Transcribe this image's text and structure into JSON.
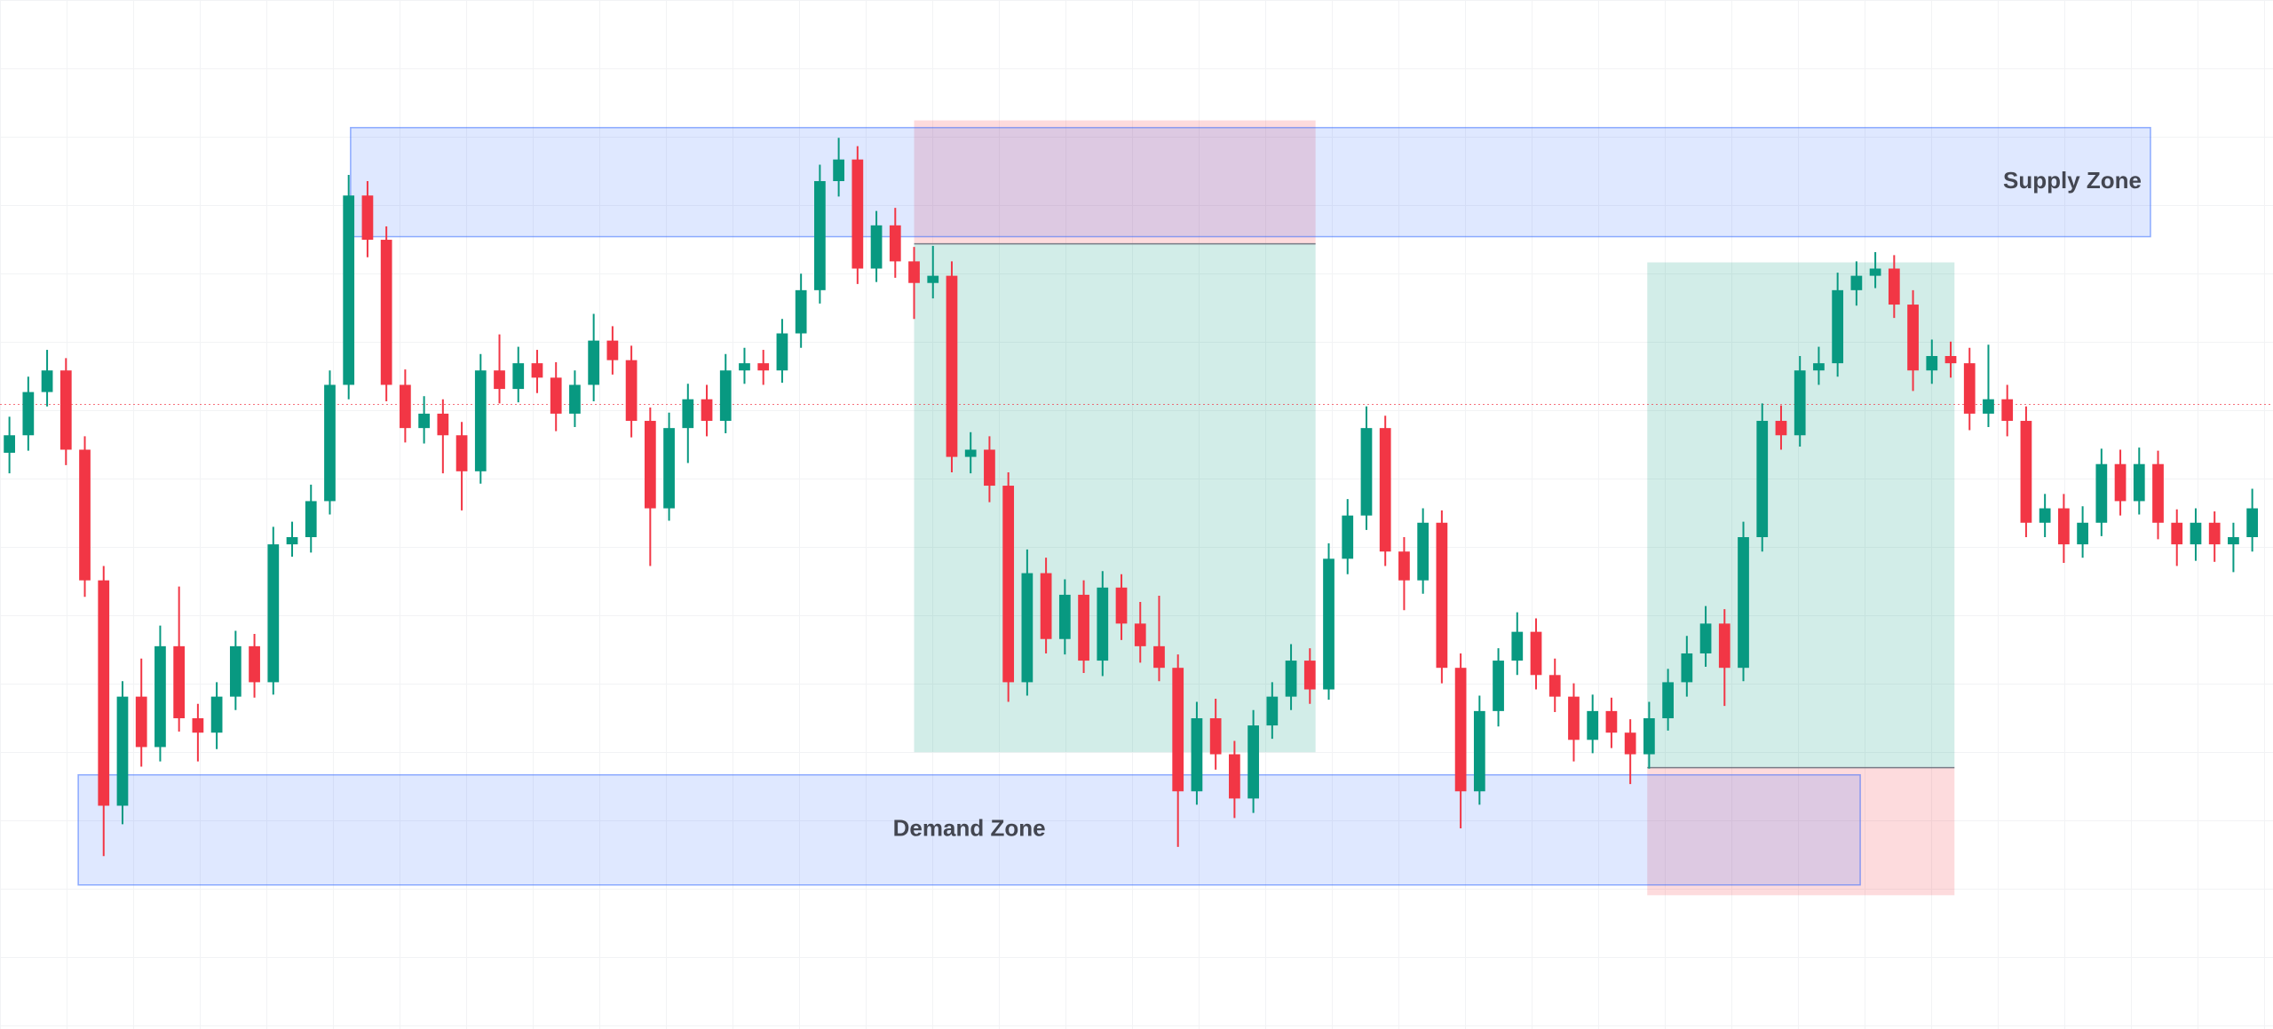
{
  "chart_data": {
    "type": "candlestick",
    "xlim": [
      -0.5,
      120.1
    ],
    "ylim": [
      0,
      100
    ],
    "up_color": "#089981",
    "down_color": "#f23645",
    "open": [
      56.0,
      57.7,
      61.9,
      64.0,
      56.3,
      43.6,
      21.7,
      32.3,
      27.4,
      37.2,
      30.2,
      28.8,
      32.3,
      37.2,
      33.7,
      47.1,
      47.8,
      51.3,
      62.6,
      81.0,
      76.7,
      62.6,
      58.4,
      59.8,
      57.7,
      54.2,
      64.0,
      62.2,
      64.7,
      63.3,
      59.8,
      62.6,
      66.9,
      65.0,
      59.1,
      50.6,
      58.4,
      61.2,
      59.1,
      64.0,
      64.7,
      64.0,
      67.6,
      71.8,
      82.4,
      84.5,
      73.9,
      78.1,
      74.6,
      72.5,
      73.2,
      55.6,
      56.3,
      52.8,
      33.7,
      44.3,
      37.9,
      42.2,
      35.8,
      42.9,
      39.4,
      37.2,
      35.1,
      23.1,
      30.2,
      26.7,
      22.4,
      29.5,
      32.3,
      35.8,
      33.0,
      45.7,
      49.9,
      58.4,
      46.4,
      43.6,
      49.2,
      35.1,
      23.1,
      30.9,
      35.8,
      38.6,
      34.4,
      32.3,
      28.1,
      30.9,
      28.8,
      26.7,
      30.2,
      33.7,
      36.5,
      39.4,
      35.1,
      47.8,
      59.1,
      57.7,
      64.0,
      64.7,
      71.8,
      73.2,
      73.9,
      70.4,
      64.0,
      65.4,
      64.7,
      59.8,
      61.2,
      59.1,
      49.2,
      50.6,
      47.1,
      49.2,
      54.9,
      51.3,
      54.9,
      49.2,
      47.1,
      49.2,
      47.1,
      47.8
    ],
    "high": [
      59.5,
      63.4,
      66.0,
      65.2,
      57.6,
      45.0,
      33.8,
      36.0,
      39.2,
      43.0,
      31.6,
      33.7,
      38.7,
      38.4,
      48.8,
      49.3,
      52.9,
      64.0,
      83.0,
      82.4,
      78.0,
      64.1,
      61.5,
      61.2,
      59.0,
      65.6,
      67.5,
      66.3,
      66.0,
      64.8,
      64.0,
      69.5,
      68.3,
      66.4,
      60.4,
      59.9,
      62.7,
      62.6,
      65.6,
      66.2,
      66.0,
      69.0,
      73.4,
      84.0,
      86.6,
      85.8,
      79.5,
      79.8,
      76.0,
      76.1,
      74.6,
      58.0,
      57.6,
      54.1,
      46.6,
      45.8,
      43.7,
      43.6,
      44.5,
      44.2,
      41.5,
      42.1,
      36.4,
      31.8,
      32.1,
      28.0,
      31.0,
      33.7,
      37.4,
      37.0,
      47.2,
      51.5,
      60.5,
      59.6,
      47.8,
      50.6,
      50.4,
      36.5,
      32.4,
      37.0,
      40.5,
      39.9,
      36.0,
      33.6,
      32.5,
      32.2,
      30.1,
      31.8,
      35.0,
      38.2,
      41.1,
      40.8,
      49.3,
      60.8,
      60.6,
      65.4,
      66.3,
      73.5,
      74.6,
      75.5,
      75.2,
      71.8,
      67.0,
      66.8,
      66.2,
      66.5,
      62.6,
      60.5,
      52.0,
      52.0,
      50.8,
      56.4,
      56.3,
      56.5,
      56.2,
      50.5,
      50.6,
      50.3,
      49.2,
      52.5
    ],
    "low": [
      54.0,
      56.2,
      60.5,
      54.8,
      42.0,
      16.8,
      19.9,
      25.5,
      26.0,
      28.9,
      26.0,
      27.2,
      31.0,
      32.2,
      32.5,
      45.9,
      46.3,
      50.0,
      61.2,
      75.0,
      61.0,
      57.0,
      56.9,
      54.0,
      50.4,
      53.0,
      60.8,
      60.9,
      61.8,
      58.1,
      58.5,
      61.0,
      63.6,
      57.5,
      45.0,
      49.4,
      55.0,
      57.6,
      57.9,
      62.7,
      62.6,
      62.8,
      66.2,
      70.5,
      80.9,
      72.4,
      72.6,
      73.0,
      69.0,
      71.0,
      54.1,
      54.0,
      51.2,
      31.8,
      32.4,
      36.5,
      36.4,
      34.6,
      34.3,
      37.8,
      35.6,
      33.8,
      17.7,
      21.8,
      25.2,
      20.5,
      21.0,
      28.2,
      31.0,
      31.6,
      32.0,
      44.2,
      48.5,
      45.0,
      40.7,
      42.3,
      33.6,
      19.5,
      21.8,
      29.4,
      34.4,
      33.0,
      30.8,
      26.0,
      26.8,
      27.3,
      23.8,
      25.3,
      29.0,
      32.3,
      35.2,
      31.4,
      33.8,
      46.4,
      56.3,
      56.6,
      62.6,
      63.4,
      70.3,
      72.0,
      69.1,
      62.0,
      62.7,
      63.3,
      58.2,
      58.5,
      57.6,
      47.8,
      47.8,
      45.3,
      45.8,
      47.9,
      49.9,
      50.0,
      47.6,
      45.0,
      45.5,
      45.4,
      44.4,
      46.4
    ],
    "close": [
      57.7,
      61.9,
      64.0,
      56.3,
      43.6,
      21.7,
      32.3,
      27.4,
      37.2,
      30.2,
      28.8,
      32.3,
      37.2,
      33.7,
      47.1,
      47.8,
      51.3,
      62.6,
      81.0,
      76.7,
      62.6,
      58.4,
      59.8,
      57.7,
      54.2,
      64.0,
      62.2,
      64.7,
      63.3,
      59.8,
      62.6,
      66.9,
      65.0,
      59.1,
      50.6,
      58.4,
      61.2,
      59.1,
      64.0,
      64.7,
      64.0,
      67.6,
      71.8,
      82.4,
      84.5,
      73.9,
      78.1,
      74.6,
      72.5,
      73.2,
      55.6,
      56.3,
      52.8,
      33.7,
      44.3,
      37.9,
      42.2,
      35.8,
      42.9,
      39.4,
      37.2,
      35.1,
      23.1,
      30.2,
      26.7,
      22.4,
      29.5,
      32.3,
      35.8,
      33.0,
      45.7,
      49.9,
      58.4,
      46.4,
      43.6,
      49.2,
      35.1,
      23.1,
      30.9,
      35.8,
      38.6,
      34.4,
      32.3,
      28.1,
      30.9,
      28.8,
      26.7,
      30.2,
      33.7,
      36.5,
      39.4,
      35.1,
      47.8,
      59.1,
      57.7,
      64.0,
      64.7,
      71.8,
      73.2,
      73.9,
      70.4,
      64.0,
      65.4,
      64.7,
      59.8,
      61.2,
      59.1,
      49.2,
      50.6,
      47.1,
      49.2,
      54.9,
      51.3,
      54.9,
      49.2,
      47.1,
      49.2,
      47.1,
      47.8,
      50.6
    ],
    "positions": [
      {
        "x0": 48,
        "x1": 69.3,
        "entry": 76.3,
        "stop": 88.3,
        "target": 26.9
      },
      {
        "x0": 86.9,
        "x1": 103.2,
        "entry": 25.4,
        "stop": 13.0,
        "target": 74.5
      }
    ],
    "profit_color": "#089981",
    "loss_color": "#f23645",
    "zones": [
      {
        "label": "Supply Zone",
        "x0": 18.1,
        "x1": 113.6,
        "top": 87.6,
        "bottom": 77.0,
        "color": "#2962ff",
        "label_position": "right"
      },
      {
        "label": "Demand Zone",
        "x0": 3.65,
        "x1": 98.2,
        "top": 24.7,
        "bottom": 14.0,
        "color": "#2962ff",
        "label_position": "center"
      }
    ],
    "price_line": {
      "value": 60.7,
      "color": "#f23645"
    }
  }
}
